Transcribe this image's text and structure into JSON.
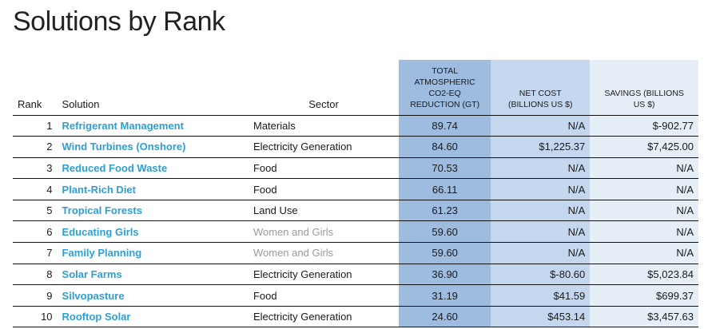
{
  "title": "Solutions by Rank",
  "headers": {
    "rank": "Rank",
    "solution": "Solution",
    "sector": "Sector",
    "total_line1": "TOTAL",
    "total_line2": "ATMOSPHERIC",
    "total_line3": "CO2-EQ",
    "total_line4": "REDUCTION (GT)",
    "cost_line1": "NET COST",
    "cost_line2": "(BILLIONS US $)",
    "savings_line1": "SAVINGS (BILLIONS",
    "savings_line2": "US $)"
  },
  "colors": {
    "solution_link": "#2e9fd3",
    "total_col": "#9dbce0",
    "cost_col": "#c5d7ee",
    "savings_col": "#e6eef8",
    "muted_sector": "#9a9a9a"
  },
  "rows": [
    {
      "rank": "1",
      "solution": "Refrigerant Management",
      "sector": "Materials",
      "total": "89.74",
      "cost": "N/A",
      "savings": "$-902.77"
    },
    {
      "rank": "2",
      "solution": "Wind Turbines (Onshore)",
      "sector": "Electricity Generation",
      "total": "84.60",
      "cost": "$1,225.37",
      "savings": "$7,425.00"
    },
    {
      "rank": "3",
      "solution": "Reduced Food Waste",
      "sector": "Food",
      "total": "70.53",
      "cost": "N/A",
      "savings": "N/A"
    },
    {
      "rank": "4",
      "solution": "Plant-Rich Diet",
      "sector": "Food",
      "total": "66.11",
      "cost": "N/A",
      "savings": "N/A"
    },
    {
      "rank": "5",
      "solution": "Tropical Forests",
      "sector": "Land Use",
      "total": "61.23",
      "cost": "N/A",
      "savings": "N/A"
    },
    {
      "rank": "6",
      "solution": "Educating Girls",
      "sector": "Women and Girls",
      "total": "59.60",
      "cost": "N/A",
      "savings": "N/A"
    },
    {
      "rank": "7",
      "solution": "Family Planning",
      "sector": "Women and Girls",
      "total": "59.60",
      "cost": "N/A",
      "savings": "N/A"
    },
    {
      "rank": "8",
      "solution": "Solar Farms",
      "sector": "Electricity Generation",
      "total": "36.90",
      "cost": "$-80.60",
      "savings": "$5,023.84"
    },
    {
      "rank": "9",
      "solution": "Silvopasture",
      "sector": "Food",
      "total": "31.19",
      "cost": "$41.59",
      "savings": "$699.37"
    },
    {
      "rank": "10",
      "solution": "Rooftop Solar",
      "sector": "Electricity Generation",
      "total": "24.60",
      "cost": "$453.14",
      "savings": "$3,457.63"
    }
  ]
}
